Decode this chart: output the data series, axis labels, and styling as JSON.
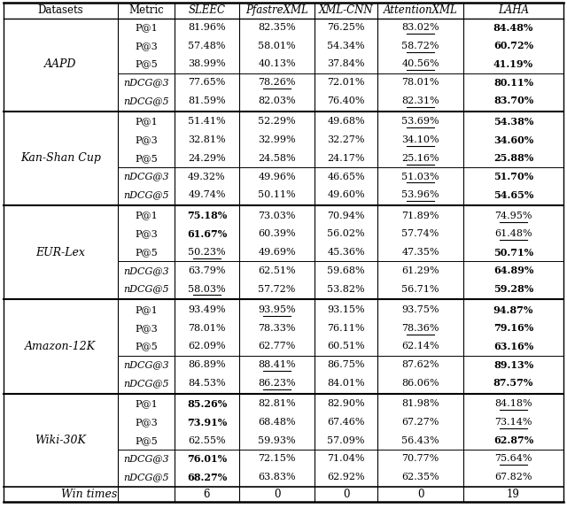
{
  "col_headers": [
    "Datasets",
    "Metric",
    "SLEEC",
    "PfastreXML",
    "XML-CNN",
    "AttentionXML",
    "LAHA"
  ],
  "rows": [
    {
      "dataset": "AAPD",
      "metrics": [
        {
          "metric": "P@1",
          "italic_m": false,
          "values": [
            "81.96%",
            "82.35%",
            "76.25%",
            "83.02%",
            "84.48%"
          ],
          "bold": [
            false,
            false,
            false,
            false,
            true
          ],
          "ul": [
            false,
            false,
            false,
            true,
            false
          ]
        },
        {
          "metric": "P@3",
          "italic_m": false,
          "values": [
            "57.48%",
            "58.01%",
            "54.34%",
            "58.72%",
            "60.72%"
          ],
          "bold": [
            false,
            false,
            false,
            false,
            true
          ],
          "ul": [
            false,
            false,
            false,
            true,
            false
          ]
        },
        {
          "metric": "P@5",
          "italic_m": false,
          "values": [
            "38.99%",
            "40.13%",
            "37.84%",
            "40.56%",
            "41.19%"
          ],
          "bold": [
            false,
            false,
            false,
            false,
            true
          ],
          "ul": [
            false,
            false,
            false,
            true,
            false
          ]
        },
        {
          "metric": "nDCG@3",
          "italic_m": true,
          "values": [
            "77.65%",
            "78.26%",
            "72.01%",
            "78.01%",
            "80.11%"
          ],
          "bold": [
            false,
            false,
            false,
            false,
            true
          ],
          "ul": [
            false,
            true,
            false,
            false,
            false
          ]
        },
        {
          "metric": "nDCG@5",
          "italic_m": true,
          "values": [
            "81.59%",
            "82.03%",
            "76.40%",
            "82.31%",
            "83.70%"
          ],
          "bold": [
            false,
            false,
            false,
            false,
            true
          ],
          "ul": [
            false,
            false,
            false,
            true,
            false
          ]
        }
      ]
    },
    {
      "dataset": "Kan-Shan Cup",
      "metrics": [
        {
          "metric": "P@1",
          "italic_m": false,
          "values": [
            "51.41%",
            "52.29%",
            "49.68%",
            "53.69%",
            "54.38%"
          ],
          "bold": [
            false,
            false,
            false,
            false,
            true
          ],
          "ul": [
            false,
            false,
            false,
            true,
            false
          ]
        },
        {
          "metric": "P@3",
          "italic_m": false,
          "values": [
            "32.81%",
            "32.99%",
            "32.27%",
            "34.10%",
            "34.60%"
          ],
          "bold": [
            false,
            false,
            false,
            false,
            true
          ],
          "ul": [
            false,
            false,
            false,
            true,
            false
          ]
        },
        {
          "metric": "P@5",
          "italic_m": false,
          "values": [
            "24.29%",
            "24.58%",
            "24.17%",
            "25.16%",
            "25.88%"
          ],
          "bold": [
            false,
            false,
            false,
            false,
            true
          ],
          "ul": [
            false,
            false,
            false,
            true,
            false
          ]
        },
        {
          "metric": "nDCG@3",
          "italic_m": true,
          "values": [
            "49.32%",
            "49.96%",
            "46.65%",
            "51.03%",
            "51.70%"
          ],
          "bold": [
            false,
            false,
            false,
            false,
            true
          ],
          "ul": [
            false,
            false,
            false,
            true,
            false
          ]
        },
        {
          "metric": "nDCG@5",
          "italic_m": true,
          "values": [
            "49.74%",
            "50.11%",
            "49.60%",
            "53.96%",
            "54.65%"
          ],
          "bold": [
            false,
            false,
            false,
            false,
            true
          ],
          "ul": [
            false,
            false,
            false,
            true,
            false
          ]
        }
      ]
    },
    {
      "dataset": "EUR-Lex",
      "metrics": [
        {
          "metric": "P@1",
          "italic_m": false,
          "values": [
            "75.18%",
            "73.03%",
            "70.94%",
            "71.89%",
            "74.95%"
          ],
          "bold": [
            true,
            false,
            false,
            false,
            false
          ],
          "ul": [
            false,
            false,
            false,
            false,
            true
          ]
        },
        {
          "metric": "P@3",
          "italic_m": false,
          "values": [
            "61.67%",
            "60.39%",
            "56.02%",
            "57.74%",
            "61.48%"
          ],
          "bold": [
            true,
            false,
            false,
            false,
            false
          ],
          "ul": [
            false,
            false,
            false,
            false,
            true
          ]
        },
        {
          "metric": "P@5",
          "italic_m": false,
          "values": [
            "50.23%",
            "49.69%",
            "45.36%",
            "47.35%",
            "50.71%"
          ],
          "bold": [
            false,
            false,
            false,
            false,
            true
          ],
          "ul": [
            true,
            false,
            false,
            false,
            false
          ]
        },
        {
          "metric": "nDCG@3",
          "italic_m": true,
          "values": [
            "63.79%",
            "62.51%",
            "59.68%",
            "61.29%",
            "64.89%"
          ],
          "bold": [
            false,
            false,
            false,
            false,
            true
          ],
          "ul": [
            false,
            false,
            false,
            false,
            false
          ]
        },
        {
          "metric": "nDCG@5",
          "italic_m": true,
          "values": [
            "58.03%",
            "57.72%",
            "53.82%",
            "56.71%",
            "59.28%"
          ],
          "bold": [
            false,
            false,
            false,
            false,
            true
          ],
          "ul": [
            true,
            false,
            false,
            false,
            false
          ]
        }
      ]
    },
    {
      "dataset": "Amazon-12K",
      "metrics": [
        {
          "metric": "P@1",
          "italic_m": false,
          "values": [
            "93.49%",
            "93.95%",
            "93.15%",
            "93.75%",
            "94.87%"
          ],
          "bold": [
            false,
            false,
            false,
            false,
            true
          ],
          "ul": [
            false,
            true,
            false,
            false,
            false
          ]
        },
        {
          "metric": "P@3",
          "italic_m": false,
          "values": [
            "78.01%",
            "78.33%",
            "76.11%",
            "78.36%",
            "79.16%"
          ],
          "bold": [
            false,
            false,
            false,
            false,
            true
          ],
          "ul": [
            false,
            false,
            false,
            true,
            false
          ]
        },
        {
          "metric": "P@5",
          "italic_m": false,
          "values": [
            "62.09%",
            "62.77%",
            "60.51%",
            "62.14%",
            "63.16%"
          ],
          "bold": [
            false,
            false,
            false,
            false,
            true
          ],
          "ul": [
            false,
            false,
            false,
            false,
            false
          ]
        },
        {
          "metric": "nDCG@3",
          "italic_m": true,
          "values": [
            "86.89%",
            "88.41%",
            "86.75%",
            "87.62%",
            "89.13%"
          ],
          "bold": [
            false,
            false,
            false,
            false,
            true
          ],
          "ul": [
            false,
            true,
            false,
            false,
            false
          ]
        },
        {
          "metric": "nDCG@5",
          "italic_m": true,
          "values": [
            "84.53%",
            "86.23%",
            "84.01%",
            "86.06%",
            "87.57%"
          ],
          "bold": [
            false,
            false,
            false,
            false,
            true
          ],
          "ul": [
            false,
            true,
            false,
            false,
            false
          ]
        }
      ]
    },
    {
      "dataset": "Wiki-30K",
      "metrics": [
        {
          "metric": "P@1",
          "italic_m": false,
          "values": [
            "85.26%",
            "82.81%",
            "82.90%",
            "81.98%",
            "84.18%"
          ],
          "bold": [
            true,
            false,
            false,
            false,
            false
          ],
          "ul": [
            false,
            false,
            false,
            false,
            true
          ]
        },
        {
          "metric": "P@3",
          "italic_m": false,
          "values": [
            "73.91%",
            "68.48%",
            "67.46%",
            "67.27%",
            "73.14%"
          ],
          "bold": [
            true,
            false,
            false,
            false,
            false
          ],
          "ul": [
            false,
            false,
            false,
            false,
            true
          ]
        },
        {
          "metric": "P@5",
          "italic_m": false,
          "values": [
            "62.55%",
            "59.93%",
            "57.09%",
            "56.43%",
            "62.87%"
          ],
          "bold": [
            false,
            false,
            false,
            false,
            true
          ],
          "ul": [
            false,
            false,
            false,
            false,
            false
          ]
        },
        {
          "metric": "nDCG@3",
          "italic_m": true,
          "values": [
            "76.01%",
            "72.15%",
            "71.04%",
            "70.77%",
            "75.64%"
          ],
          "bold": [
            true,
            false,
            false,
            false,
            false
          ],
          "ul": [
            false,
            false,
            false,
            false,
            true
          ]
        },
        {
          "metric": "nDCG@5",
          "italic_m": true,
          "values": [
            "68.27%",
            "63.83%",
            "62.92%",
            "62.35%",
            "67.82%"
          ],
          "bold": [
            true,
            false,
            false,
            false,
            false
          ],
          "ul": [
            false,
            false,
            false,
            false,
            false
          ]
        }
      ]
    }
  ],
  "win_times": [
    "6",
    "0",
    "0",
    "0",
    "19"
  ],
  "figsize": [
    6.4,
    5.83
  ],
  "dpi": 100
}
